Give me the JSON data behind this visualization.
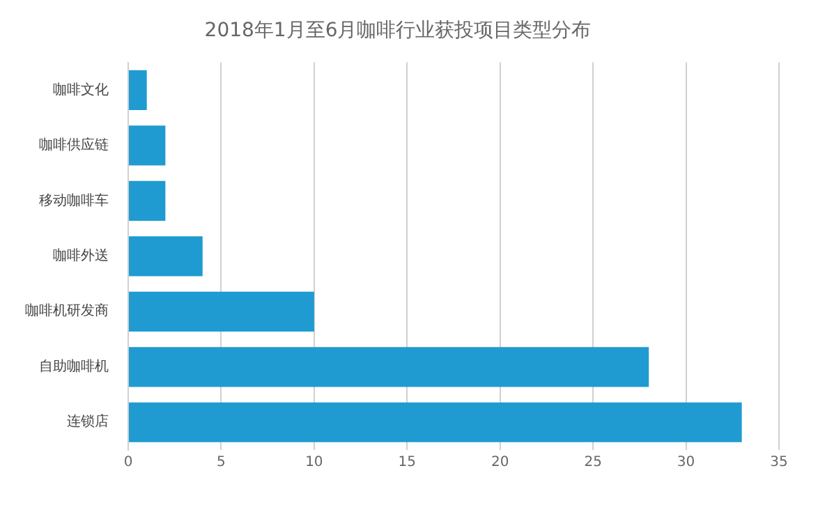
{
  "chart_data": {
    "type": "bar",
    "orientation": "horizontal",
    "title": "2018年1月至6月咖啡行业获投项目类型分布",
    "categories": [
      "咖啡文化",
      "咖啡供应链",
      "移动咖啡车",
      "咖啡外送",
      "咖啡机研发商",
      "自助咖啡机",
      "连锁店"
    ],
    "values": [
      1,
      2,
      2,
      4,
      10,
      28,
      33
    ],
    "color": "#1f9bd1",
    "xlim": [
      0,
      35
    ],
    "xticks": [
      0,
      5,
      10,
      15,
      20,
      25,
      30,
      35
    ],
    "grid": "x",
    "legend": false
  }
}
